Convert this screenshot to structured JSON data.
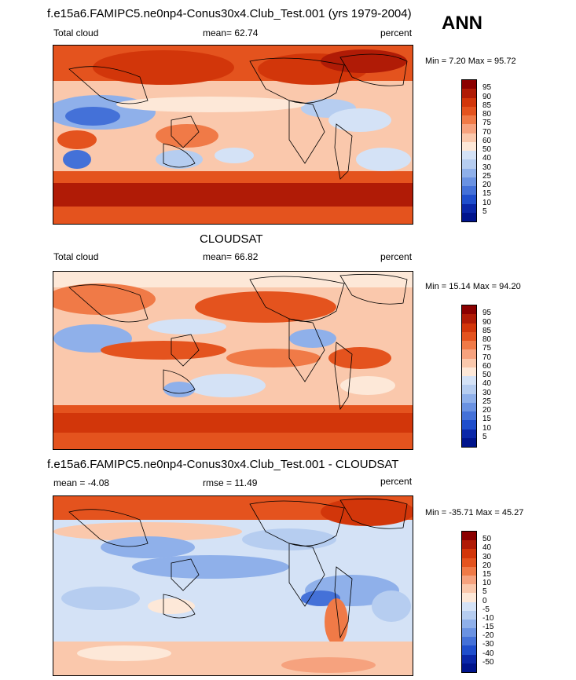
{
  "season": "ANN",
  "panels": [
    {
      "title": "f.e15a6.FAMIPC5.ne0np4-Conus30x4.Club_Test.001 (yrs 1979-2004)",
      "left_label": "Total cloud",
      "center_label": "mean=  62.74",
      "right_label": "percent",
      "minmax": "Min =   7.20 Max =  95.72",
      "levels": [
        "95",
        "90",
        "85",
        "80",
        "75",
        "70",
        "60",
        "50",
        "40",
        "30",
        "25",
        "20",
        "15",
        "10",
        "5"
      ],
      "colors": [
        "#8b0000",
        "#b01b06",
        "#d2360a",
        "#e4531e",
        "#f07a47",
        "#f6a27e",
        "#fac8ac",
        "#fde8d8",
        "#d4e2f6",
        "#b6cdf0",
        "#8fb0ea",
        "#6a92e2",
        "#4471d8",
        "#1f4ecc",
        "#0a27a8",
        "#00148c"
      ]
    },
    {
      "title": "CLOUDSAT",
      "left_label": "Total cloud",
      "center_label": "mean=  66.82",
      "right_label": "percent",
      "minmax": "Min =  15.14 Max =  94.20",
      "levels": [
        "95",
        "90",
        "85",
        "80",
        "75",
        "70",
        "60",
        "50",
        "40",
        "30",
        "25",
        "20",
        "15",
        "10",
        "5"
      ],
      "colors": [
        "#8b0000",
        "#b01b06",
        "#d2360a",
        "#e4531e",
        "#f07a47",
        "#f6a27e",
        "#fac8ac",
        "#fde8d8",
        "#d4e2f6",
        "#b6cdf0",
        "#8fb0ea",
        "#6a92e2",
        "#4471d8",
        "#1f4ecc",
        "#0a27a8",
        "#00148c"
      ]
    },
    {
      "title": "f.e15a6.FAMIPC5.ne0np4-Conus30x4.Club_Test.001 - CLOUDSAT",
      "left_label": "mean =  -4.08",
      "center_label": "rmse =  11.49",
      "right_label": "percent",
      "minmax": "Min = -35.71 Max =  45.27",
      "levels": [
        "50",
        "40",
        "30",
        "20",
        "15",
        "10",
        "5",
        "0",
        "-5",
        "-10",
        "-15",
        "-20",
        "-30",
        "-40",
        "-50"
      ],
      "colors": [
        "#8b0000",
        "#b01b06",
        "#d2360a",
        "#e4531e",
        "#f07a47",
        "#f6a27e",
        "#fac8ac",
        "#fde8d8",
        "#d4e2f6",
        "#b6cdf0",
        "#8fb0ea",
        "#6a92e2",
        "#4471d8",
        "#1f4ecc",
        "#0a27a8",
        "#00148c"
      ]
    }
  ]
}
